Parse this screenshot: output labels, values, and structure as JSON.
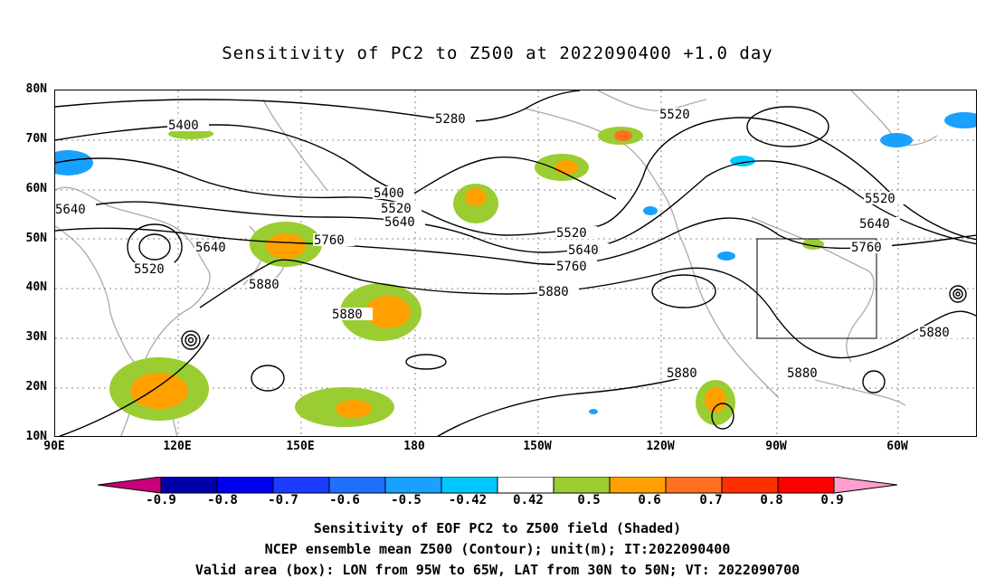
{
  "title": "Sensitivity of PC2 to Z500 at 2022090400 +1.0 day",
  "lat_labels": [
    "80N",
    "70N",
    "60N",
    "50N",
    "40N",
    "30N",
    "20N",
    "10N"
  ],
  "lon_labels": [
    "90E",
    "120E",
    "150E",
    "180",
    "150W",
    "120W",
    "90W",
    "60W"
  ],
  "contour_labels": [
    "5400",
    "5280",
    "5520",
    "5400",
    "5520",
    "5640",
    "5640",
    "5640",
    "5520",
    "5760",
    "5520",
    "5640",
    "5760",
    "5880",
    "5880",
    "5880",
    "5520",
    "5640",
    "5760",
    "5880",
    "5880"
  ],
  "colorbar": {
    "labels": [
      "-0.9",
      "-0.8",
      "-0.7",
      "-0.6",
      "-0.5",
      "-0.42",
      "0.42",
      "0.5",
      "0.6",
      "0.7",
      "0.8",
      "0.9"
    ],
    "colors": [
      "#0000aa",
      "#0000ee",
      "#1a3cff",
      "#2070ff",
      "#1aa0ff",
      "#00c8ff",
      "#ffffff",
      "#9acd32",
      "#ffa000",
      "#ff7020",
      "#ff3000",
      "#ff0000"
    ],
    "low_end": "#c8007a",
    "high_end": "#ff9ecf"
  },
  "captions": [
    "Sensitivity of EOF PC2 to Z500 field (Shaded)",
    "NCEP ensemble mean Z500 (Contour); unit(m); IT:2022090400",
    "Valid area (box): LON from 95W to 65W, LAT from 30N to 50N; VT: 2022090700"
  ]
}
